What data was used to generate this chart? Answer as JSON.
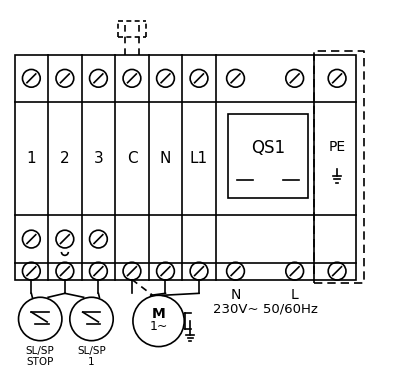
{
  "bg_color": "#ffffff",
  "line_color": "#000000",
  "fig_width": 4.0,
  "fig_height": 3.74,
  "terminal_labels_top": [
    "1",
    "2",
    "3",
    "C",
    "N",
    "L1"
  ],
  "pe_label": "PE",
  "qs1_label": "QS1",
  "bottom_labels_nl": [
    "N",
    "L"
  ],
  "bottom_freq": "230V~ 50/60Hz",
  "slsp_stop": "SL/SP\nSTOP",
  "slsp_1": "SL/SP\n1"
}
